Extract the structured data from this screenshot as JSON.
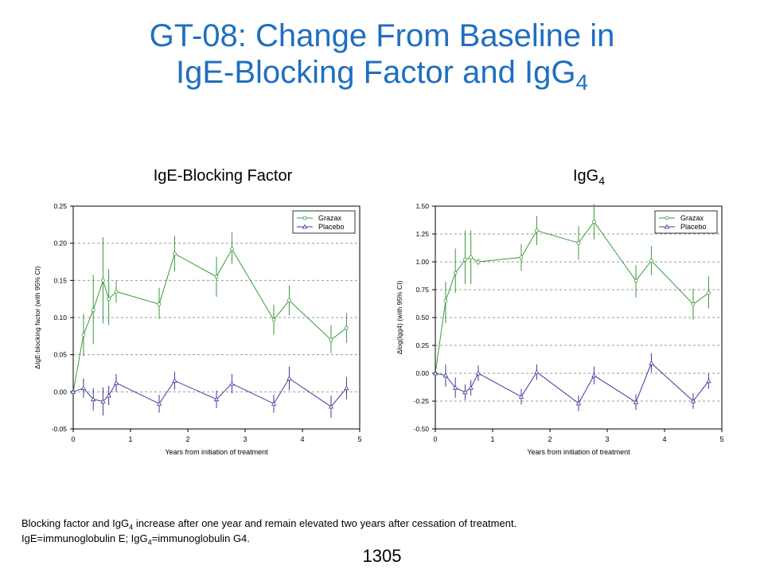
{
  "slide": {
    "title_line1": "GT-08: Change From Baseline in",
    "title_line2": "IgE-Blocking Factor and IgG",
    "title_sub": "4",
    "page_number": "1305"
  },
  "panels": {
    "left_heading": "IgE-Blocking Factor",
    "right_heading": "IgG",
    "right_heading_sub": "4"
  },
  "footnote": {
    "l1_a": "Blocking factor and IgG",
    "l1_sub": "4",
    "l1_b": " increase after one year and remain elevated two years after cessation of treatment.",
    "l2_a": "IgE=immunoglobulin  E; IgG",
    "l2_sub": "4",
    "l2_b": "=immunoglobulin  G4."
  },
  "colors": {
    "title": "#1f6fbf",
    "grazax": "#3a9a3a",
    "placebo": "#3a3a9a",
    "grid": "#999999"
  },
  "chart_data": [
    {
      "type": "line",
      "xlabel": "Years from initiation of treatment",
      "ylabel": "ΔIgE-blocking factor (with 95% CI)",
      "xlim": [
        0,
        5
      ],
      "ylim": [
        -0.05,
        0.25
      ],
      "xticks": [
        "0",
        "1",
        "2",
        "3",
        "4",
        "5"
      ],
      "yticks": [
        "-0.05",
        "0.00",
        "0.05",
        "0.10",
        "0.15",
        "0.20",
        "0.25"
      ],
      "grid": "horizontal dashed",
      "legend_position": "top-right",
      "series": [
        {
          "name": "Grazax",
          "x": [
            0,
            0.18,
            0.35,
            0.52,
            0.62,
            0.75,
            1.5,
            1.77,
            2.5,
            2.77,
            3.5,
            3.77,
            4.5,
            4.77
          ],
          "y": [
            0.0,
            0.077,
            0.11,
            0.15,
            0.125,
            0.135,
            0.118,
            0.186,
            0.155,
            0.192,
            0.097,
            0.123,
            0.07,
            0.086
          ],
          "lo": [
            0.0,
            0.048,
            0.064,
            0.092,
            0.09,
            0.12,
            0.098,
            0.162,
            0.128,
            0.172,
            0.077,
            0.103,
            0.052,
            0.066
          ],
          "hi": [
            0.0,
            0.105,
            0.157,
            0.208,
            0.165,
            0.15,
            0.14,
            0.21,
            0.182,
            0.215,
            0.117,
            0.143,
            0.09,
            0.106
          ]
        },
        {
          "name": "Placebo",
          "x": [
            0,
            0.18,
            0.35,
            0.52,
            0.62,
            0.75,
            1.5,
            1.77,
            2.5,
            2.77,
            3.5,
            3.77,
            4.5,
            4.77
          ],
          "y": [
            0.0,
            0.005,
            -0.01,
            -0.013,
            -0.005,
            0.012,
            -0.016,
            0.015,
            -0.01,
            0.011,
            -0.016,
            0.018,
            -0.02,
            0.005
          ],
          "lo": [
            0.0,
            -0.008,
            -0.025,
            -0.032,
            -0.018,
            0.0,
            -0.028,
            0.003,
            -0.022,
            -0.002,
            -0.028,
            0.002,
            -0.035,
            -0.01
          ],
          "hi": [
            0.0,
            0.018,
            0.005,
            0.006,
            0.008,
            0.024,
            -0.004,
            0.027,
            0.002,
            0.024,
            -0.004,
            0.034,
            -0.005,
            0.02
          ]
        }
      ]
    },
    {
      "type": "line",
      "xlabel": "Years from initiation of treatment",
      "ylabel": "Δlog(Igg4) (with 95% CI)",
      "xlim": [
        0,
        5
      ],
      "ylim": [
        -0.5,
        1.5
      ],
      "xticks": [
        "0",
        "1",
        "2",
        "3",
        "4",
        "5"
      ],
      "yticks": [
        "-0.50",
        "-0.25",
        "0.00",
        "0.25",
        "0.50",
        "0.75",
        "1.00",
        "1.25",
        "1.50"
      ],
      "grid": "horizontal dashed",
      "legend_position": "top-right",
      "series": [
        {
          "name": "Grazax",
          "x": [
            0,
            0.18,
            0.35,
            0.52,
            0.62,
            0.75,
            1.5,
            1.77,
            2.5,
            2.77,
            3.5,
            3.77,
            4.5,
            4.77
          ],
          "y": [
            0.0,
            0.65,
            0.9,
            1.02,
            1.04,
            1.0,
            1.04,
            1.28,
            1.17,
            1.36,
            0.83,
            1.01,
            0.62,
            0.72
          ],
          "lo": [
            0.0,
            0.45,
            0.72,
            0.8,
            0.8,
            0.97,
            0.92,
            1.15,
            1.02,
            1.2,
            0.68,
            0.88,
            0.48,
            0.58
          ],
          "hi": [
            0.0,
            0.82,
            1.12,
            1.28,
            1.28,
            1.03,
            1.16,
            1.41,
            1.32,
            1.52,
            0.97,
            1.14,
            0.76,
            0.87
          ]
        },
        {
          "name": "Placebo",
          "x": [
            0,
            0.18,
            0.35,
            0.52,
            0.62,
            0.75,
            1.5,
            1.77,
            2.5,
            2.77,
            3.5,
            3.77,
            4.5,
            4.77
          ],
          "y": [
            0.0,
            -0.02,
            -0.13,
            -0.17,
            -0.13,
            0.0,
            -0.21,
            0.01,
            -0.27,
            -0.02,
            -0.26,
            0.09,
            -0.25,
            -0.07
          ],
          "lo": [
            0.0,
            -0.12,
            -0.22,
            -0.24,
            -0.2,
            -0.07,
            -0.28,
            -0.06,
            -0.34,
            -0.1,
            -0.33,
            0.01,
            -0.32,
            -0.14
          ],
          "hi": [
            0.0,
            0.08,
            -0.04,
            -0.1,
            -0.06,
            0.07,
            -0.14,
            0.08,
            -0.2,
            0.06,
            -0.19,
            0.18,
            -0.18,
            0.0
          ]
        }
      ]
    }
  ]
}
